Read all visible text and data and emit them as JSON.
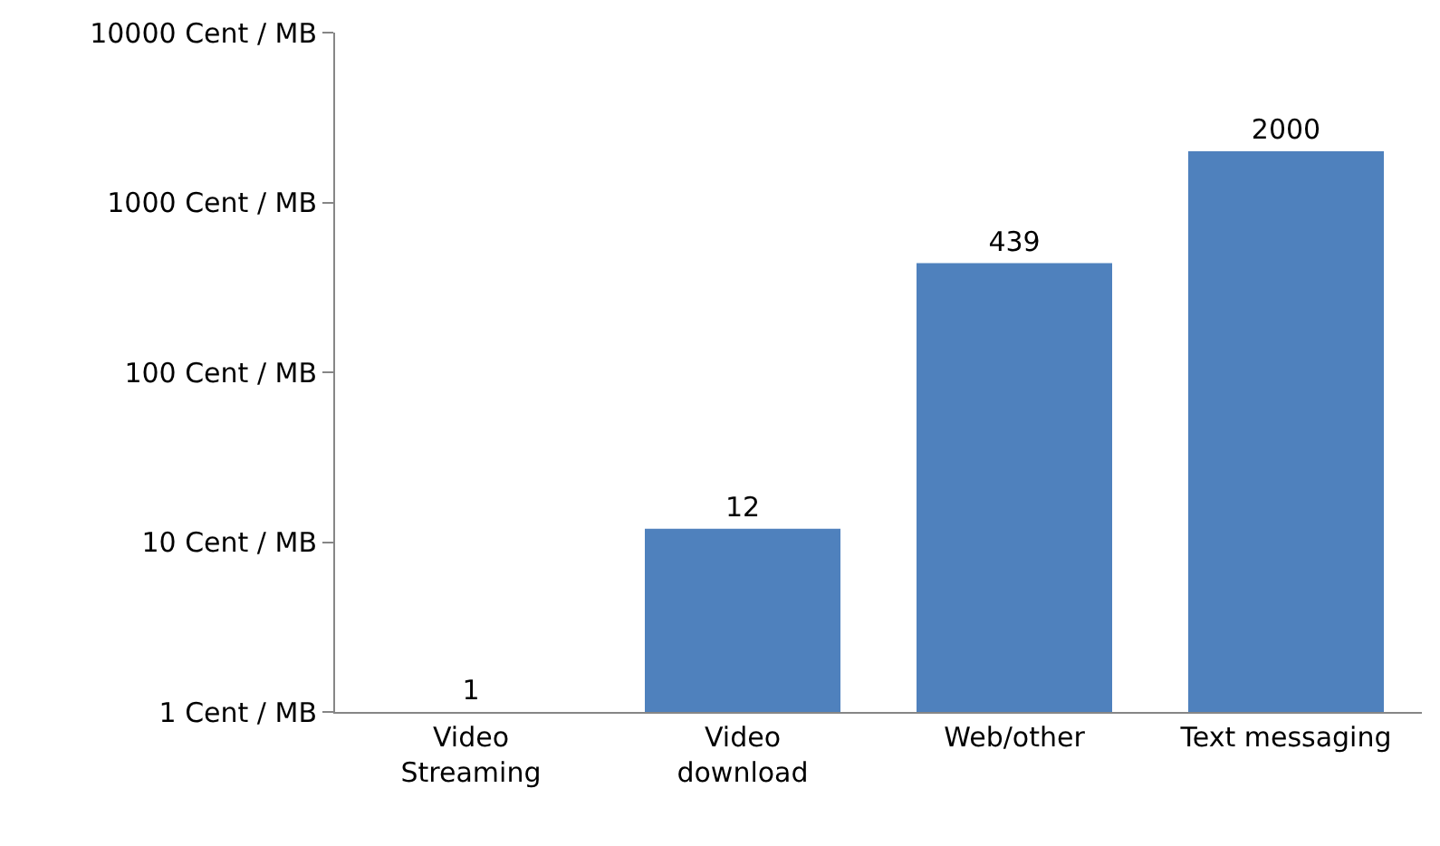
{
  "chart_data": {
    "type": "bar",
    "categories": [
      "Video\nStreaming",
      "Video\ndownload",
      "Web/other",
      "Text messaging"
    ],
    "values": [
      1,
      12,
      439,
      2000
    ],
    "color": "#4f81bd",
    "log": "y",
    "ylim": [
      1,
      10000
    ],
    "yticks": [
      {
        "value": 1,
        "label": "1 Cent / MB"
      },
      {
        "value": 10,
        "label": "10 Cent / MB"
      },
      {
        "value": 100,
        "label": "100 Cent / MB"
      },
      {
        "value": 1000,
        "label": "1000 Cent / MB"
      },
      {
        "value": 10000,
        "label": "10000 Cent / MB"
      }
    ],
    "data_labels": true,
    "grid": false,
    "legend": false
  }
}
